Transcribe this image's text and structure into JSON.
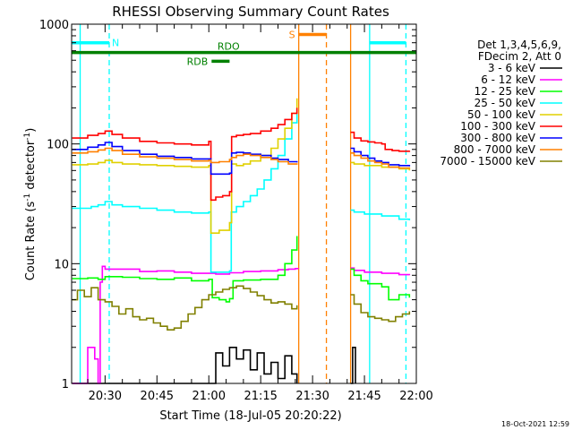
{
  "chart_data": {
    "type": "line",
    "title": "RHESSI Observing Summary Count Rates",
    "xlabel": "Start Time (18-Jul-05 20:20:22)",
    "ylabel": "Count Rate (s",
    "ylabel_sup1": "-1",
    "ylabel_mid": " detector",
    "ylabel_sup2": "-1",
    "ylabel_end": ")",
    "y_scale": "log",
    "ylim": [
      1,
      1000
    ],
    "xlim_minutes": [
      20.33,
      120.0
    ],
    "x_tick_labels": [
      {
        "label": "20:30",
        "minute": 30
      },
      {
        "label": "20:45",
        "minute": 45
      },
      {
        "label": "21:00",
        "minute": 60
      },
      {
        "label": "21:15",
        "minute": 75
      },
      {
        "label": "21:30",
        "minute": 90
      },
      {
        "label": "21:45",
        "minute": 105
      },
      {
        "label": "22:00",
        "minute": 120
      }
    ],
    "y_tick_labels": [
      {
        "label": "1",
        "value": 1
      },
      {
        "label": "10",
        "value": 10
      },
      {
        "label": "100",
        "value": 100
      },
      {
        "label": "1000",
        "value": 1000
      }
    ],
    "legend": {
      "placement": "right",
      "header": [
        "Det 1,3,4,5,6,9,",
        "FDecim 2, Att 0"
      ]
    },
    "data_gaps_minutes": [
      [
        87.5,
        101.0
      ]
    ],
    "flags": [
      {
        "label": "N",
        "color": "#00ffff",
        "value": 700,
        "segments": [
          [
            20.33,
            31.2
          ],
          [
            106.5,
            117.0
          ]
        ]
      },
      {
        "label": "S",
        "color": "#ff8000",
        "value": 820,
        "segments": [
          [
            86.0,
            94.0
          ]
        ]
      },
      {
        "label": "RDO",
        "color": "#008000",
        "value": 580,
        "segments": [
          [
            20.33,
            120.0
          ]
        ]
      },
      {
        "label": "RDB",
        "color": "#008000",
        "value": 490,
        "segments": [
          [
            60.8,
            66.0
          ]
        ]
      }
    ],
    "markers": [
      {
        "minute": 22.8,
        "color": "#00ffff",
        "style": "solid"
      },
      {
        "minute": 31.2,
        "color": "#00ffff",
        "style": "dashed"
      },
      {
        "minute": 106.5,
        "color": "#00ffff",
        "style": "solid"
      },
      {
        "minute": 117.0,
        "color": "#00ffff",
        "style": "dashed"
      },
      {
        "minute": 86.0,
        "color": "#ff8000",
        "style": "solid"
      },
      {
        "minute": 94.0,
        "color": "#ff8000",
        "style": "dashed"
      },
      {
        "minute": 101.0,
        "color": "#ff8000",
        "style": "solid"
      }
    ],
    "series": [
      {
        "name": "3 - 6 keV",
        "color": "#000000",
        "points": [
          [
            20.5,
            1
          ],
          [
            60,
            1
          ],
          [
            62,
            1.8
          ],
          [
            64,
            1.4
          ],
          [
            66,
            2.0
          ],
          [
            68,
            1.6
          ],
          [
            70,
            1.9
          ],
          [
            72,
            1.3
          ],
          [
            74,
            1.8
          ],
          [
            76,
            1.2
          ],
          [
            78,
            1.5
          ],
          [
            80,
            1.1
          ],
          [
            82,
            1.7
          ],
          [
            84,
            1.2
          ],
          [
            85.5,
            1
          ],
          [
            101,
            1
          ],
          [
            101.6,
            2.0
          ],
          [
            102.4,
            1
          ]
        ]
      },
      {
        "name": "6 - 12 keV",
        "color": "#ff00ff",
        "points": [
          [
            20.5,
            1
          ],
          [
            24,
            1
          ],
          [
            25,
            2
          ],
          [
            27,
            1.6
          ],
          [
            28,
            1
          ],
          [
            28.6,
            7
          ],
          [
            29.2,
            9.5
          ],
          [
            30,
            9.0
          ],
          [
            35,
            9.0
          ],
          [
            40,
            8.6
          ],
          [
            45,
            8.7
          ],
          [
            50,
            8.5
          ],
          [
            55,
            8.3
          ],
          [
            60,
            8.3
          ],
          [
            62,
            8.2
          ],
          [
            66,
            8.4
          ],
          [
            70,
            8.6
          ],
          [
            75,
            8.7
          ],
          [
            80,
            8.9
          ],
          [
            83,
            9.0
          ],
          [
            85,
            9.1
          ],
          [
            85.8,
            9.0
          ],
          [
            101,
            9.2
          ],
          [
            102,
            8.8
          ],
          [
            105,
            8.5
          ],
          [
            110,
            8.3
          ],
          [
            115,
            8.1
          ],
          [
            118,
            8.0
          ]
        ]
      },
      {
        "name": "12 - 25 keV",
        "color": "#00ff00",
        "points": [
          [
            20.5,
            7.5
          ],
          [
            25,
            7.6
          ],
          [
            28,
            7.4
          ],
          [
            30,
            7.8
          ],
          [
            35,
            7.7
          ],
          [
            40,
            7.5
          ],
          [
            45,
            7.4
          ],
          [
            50,
            7.6
          ],
          [
            55,
            7.2
          ],
          [
            60,
            7.4
          ],
          [
            61,
            5.2
          ],
          [
            63,
            5.0
          ],
          [
            65,
            4.8
          ],
          [
            66,
            5.1
          ],
          [
            67,
            7.2
          ],
          [
            70,
            7.3
          ],
          [
            75,
            7.4
          ],
          [
            80,
            8.0
          ],
          [
            82,
            10.0
          ],
          [
            84,
            13.0
          ],
          [
            85.5,
            17.0
          ],
          [
            101,
            9.0
          ],
          [
            102,
            8.0
          ],
          [
            104,
            7.2
          ],
          [
            106,
            6.8
          ],
          [
            110,
            6.4
          ],
          [
            112,
            5.0
          ],
          [
            115,
            5.5
          ],
          [
            118,
            5.2
          ]
        ]
      },
      {
        "name": "25 - 50 keV",
        "color": "#00ffff",
        "points": [
          [
            20.5,
            29
          ],
          [
            26,
            30
          ],
          [
            28,
            31
          ],
          [
            30,
            33
          ],
          [
            32,
            31
          ],
          [
            35,
            30
          ],
          [
            40,
            29
          ],
          [
            45,
            28
          ],
          [
            50,
            27
          ],
          [
            55,
            26.5
          ],
          [
            60,
            27
          ],
          [
            60.6,
            8.5
          ],
          [
            63,
            8.5
          ],
          [
            66,
            8.7
          ],
          [
            66.5,
            27
          ],
          [
            68,
            30
          ],
          [
            70,
            33
          ],
          [
            72,
            37
          ],
          [
            74,
            42
          ],
          [
            76,
            50
          ],
          [
            78,
            62
          ],
          [
            80,
            80
          ],
          [
            82,
            110
          ],
          [
            84,
            150
          ],
          [
            85.5,
            190
          ],
          [
            101,
            28
          ],
          [
            102,
            27
          ],
          [
            105,
            26
          ],
          [
            110,
            25
          ],
          [
            115,
            23.5
          ],
          [
            118,
            23
          ]
        ]
      },
      {
        "name": "50 - 100 keV",
        "color": "#e0d000",
        "points": [
          [
            20.5,
            67
          ],
          [
            25,
            68
          ],
          [
            28,
            70
          ],
          [
            30,
            73
          ],
          [
            32,
            70
          ],
          [
            35,
            68
          ],
          [
            40,
            67
          ],
          [
            45,
            66
          ],
          [
            50,
            65
          ],
          [
            55,
            64
          ],
          [
            60,
            66
          ],
          [
            60.6,
            18
          ],
          [
            63,
            19
          ],
          [
            66,
            22
          ],
          [
            66.6,
            68
          ],
          [
            68,
            66
          ],
          [
            70,
            68
          ],
          [
            72,
            72
          ],
          [
            75,
            80
          ],
          [
            78,
            92
          ],
          [
            80,
            110
          ],
          [
            82,
            135
          ],
          [
            84,
            180
          ],
          [
            85.5,
            240
          ],
          [
            101,
            70
          ],
          [
            102,
            68
          ],
          [
            105,
            66
          ],
          [
            110,
            64
          ],
          [
            115,
            62
          ],
          [
            118,
            60
          ]
        ]
      },
      {
        "name": "100 - 300 keV",
        "color": "#ff0000",
        "points": [
          [
            20.5,
            112
          ],
          [
            25,
            118
          ],
          [
            28,
            122
          ],
          [
            30,
            128
          ],
          [
            32,
            120
          ],
          [
            35,
            112
          ],
          [
            40,
            105
          ],
          [
            45,
            102
          ],
          [
            50,
            100
          ],
          [
            55,
            98
          ],
          [
            60,
            105
          ],
          [
            60.6,
            34
          ],
          [
            62,
            36
          ],
          [
            64,
            37
          ],
          [
            66,
            40
          ],
          [
            66.6,
            115
          ],
          [
            68,
            118
          ],
          [
            70,
            120
          ],
          [
            72,
            122
          ],
          [
            75,
            128
          ],
          [
            78,
            135
          ],
          [
            80,
            145
          ],
          [
            82,
            160
          ],
          [
            84,
            180
          ],
          [
            85.5,
            200
          ],
          [
            101,
            125
          ],
          [
            102,
            112
          ],
          [
            104,
            106
          ],
          [
            106,
            104
          ],
          [
            108,
            102
          ],
          [
            110,
            100
          ],
          [
            111,
            90
          ],
          [
            113,
            88
          ],
          [
            115,
            87
          ],
          [
            118,
            88
          ]
        ]
      },
      {
        "name": "300 - 800 keV",
        "color": "#0000ff",
        "points": [
          [
            20.5,
            90
          ],
          [
            25,
            94
          ],
          [
            28,
            98
          ],
          [
            30,
            103
          ],
          [
            32,
            95
          ],
          [
            35,
            88
          ],
          [
            40,
            82
          ],
          [
            45,
            79
          ],
          [
            50,
            77
          ],
          [
            55,
            75
          ],
          [
            60,
            75
          ],
          [
            60.6,
            56
          ],
          [
            63,
            56
          ],
          [
            66,
            57
          ],
          [
            66.6,
            84
          ],
          [
            68,
            85
          ],
          [
            70,
            84
          ],
          [
            72,
            82
          ],
          [
            75,
            80
          ],
          [
            78,
            76
          ],
          [
            80,
            74
          ],
          [
            83,
            71
          ],
          [
            85.5,
            70
          ],
          [
            101,
            92
          ],
          [
            102,
            86
          ],
          [
            104,
            80
          ],
          [
            106,
            76
          ],
          [
            108,
            72
          ],
          [
            110,
            70
          ],
          [
            112,
            67
          ],
          [
            115,
            66
          ],
          [
            118,
            65
          ]
        ]
      },
      {
        "name": "800 - 7000 keV",
        "color": "#ff8000",
        "points": [
          [
            20.5,
            84
          ],
          [
            25,
            86
          ],
          [
            28,
            89
          ],
          [
            30,
            92
          ],
          [
            32,
            88
          ],
          [
            35,
            82
          ],
          [
            40,
            78
          ],
          [
            45,
            76
          ],
          [
            50,
            74
          ],
          [
            55,
            72
          ],
          [
            60,
            73
          ],
          [
            60.6,
            70
          ],
          [
            63,
            71
          ],
          [
            66,
            74
          ],
          [
            66.6,
            77
          ],
          [
            68,
            80
          ],
          [
            70,
            82
          ],
          [
            72,
            80
          ],
          [
            75,
            77
          ],
          [
            78,
            74
          ],
          [
            80,
            71
          ],
          [
            83,
            68
          ],
          [
            85.5,
            67
          ],
          [
            101,
            84
          ],
          [
            102,
            80
          ],
          [
            104,
            76
          ],
          [
            106,
            72
          ],
          [
            108,
            70
          ],
          [
            110,
            68
          ],
          [
            112,
            64
          ],
          [
            115,
            63
          ],
          [
            118,
            62
          ]
        ]
      },
      {
        "name": "7000 - 15000 keV",
        "color": "#808000",
        "points": [
          [
            20.5,
            5.0
          ],
          [
            22,
            6.0
          ],
          [
            24,
            5.3
          ],
          [
            26,
            6.3
          ],
          [
            28,
            5.0
          ],
          [
            30,
            4.8
          ],
          [
            32,
            4.4
          ],
          [
            34,
            3.8
          ],
          [
            36,
            4.2
          ],
          [
            38,
            3.6
          ],
          [
            40,
            3.4
          ],
          [
            42,
            3.5
          ],
          [
            44,
            3.2
          ],
          [
            46,
            3.0
          ],
          [
            48,
            2.8
          ],
          [
            50,
            2.9
          ],
          [
            52,
            3.3
          ],
          [
            54,
            3.8
          ],
          [
            56,
            4.3
          ],
          [
            58,
            5.0
          ],
          [
            60,
            5.5
          ],
          [
            62,
            5.8
          ],
          [
            64,
            6.1
          ],
          [
            66,
            6.3
          ],
          [
            68,
            6.5
          ],
          [
            70,
            6.2
          ],
          [
            72,
            5.8
          ],
          [
            74,
            5.4
          ],
          [
            76,
            5.0
          ],
          [
            78,
            4.7
          ],
          [
            80,
            4.8
          ],
          [
            82,
            4.6
          ],
          [
            84,
            4.2
          ],
          [
            85.5,
            4.5
          ],
          [
            101,
            5.5
          ],
          [
            102,
            4.6
          ],
          [
            104,
            3.9
          ],
          [
            106,
            3.6
          ],
          [
            108,
            3.5
          ],
          [
            110,
            3.4
          ],
          [
            112,
            3.3
          ],
          [
            114,
            3.6
          ],
          [
            116,
            3.8
          ],
          [
            118,
            4.0
          ]
        ]
      }
    ]
  },
  "footer": {
    "timestamp": "18-Oct-2021 12:59"
  }
}
